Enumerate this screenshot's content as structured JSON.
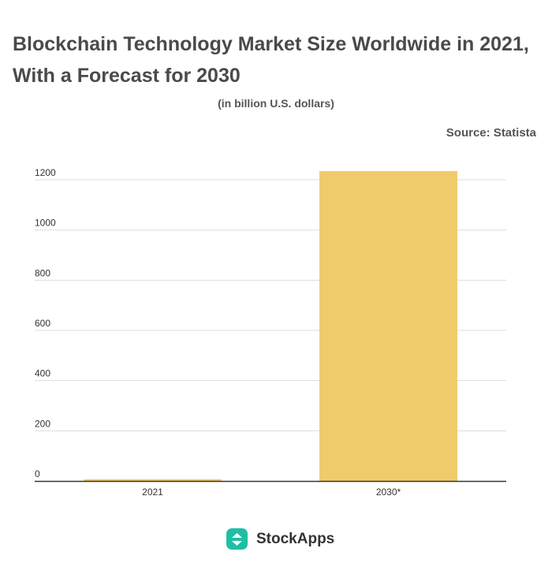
{
  "header": {
    "title": "Blockchain Technology Market Size Worldwide in 2021, With a Forecast for 2030",
    "subtitle": "(in billion U.S. dollars)",
    "source": "Source: Statista"
  },
  "brand": {
    "name": "StockApps",
    "logo_icon": "stockapps-logo-icon"
  },
  "colors": {
    "bar": "#f0cb6b",
    "grid": "#dddddd",
    "axis": "#333333",
    "text": "#333333",
    "logo": "#1fbfa3"
  },
  "chart_data": {
    "type": "bar",
    "categories": [
      "2021",
      "2030*"
    ],
    "values": [
      7,
      1235
    ],
    "ylim": [
      0,
      1200
    ],
    "yticks": [
      0,
      200,
      400,
      600,
      800,
      1000,
      1200
    ],
    "grid": true,
    "legend": "none"
  }
}
